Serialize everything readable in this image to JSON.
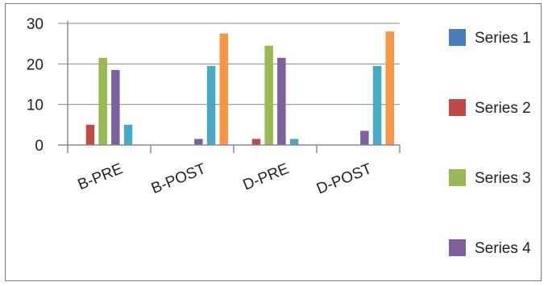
{
  "chart_data": {
    "type": "bar",
    "title": "",
    "xlabel": "",
    "ylabel": "",
    "ylim": [
      0,
      30
    ],
    "yticks": [
      0,
      10,
      20,
      30
    ],
    "categories": [
      "B-PRE",
      "B-POST",
      "D-PRE",
      "D-POST"
    ],
    "grid": true,
    "legend_position": "right",
    "series": [
      {
        "name": "Series 1",
        "color": "#4a7ebb",
        "values": [
          0,
          0,
          0,
          0
        ]
      },
      {
        "name": "Series 2",
        "color": "#be4b48",
        "values": [
          5,
          0,
          1.5,
          0
        ]
      },
      {
        "name": "Series 3",
        "color": "#98b954",
        "values": [
          21.5,
          0,
          24.5,
          0
        ]
      },
      {
        "name": "Series 4",
        "color": "#7d60a0",
        "values": [
          18.5,
          1.5,
          21.5,
          3.5
        ]
      },
      {
        "name": "",
        "color": "#46aac5",
        "values": [
          5,
          19.5,
          1.5,
          19.5
        ]
      },
      {
        "name": "",
        "color": "#f79646",
        "values": [
          0,
          27.5,
          0,
          28
        ]
      }
    ],
    "legend_items": [
      {
        "label": "Series 1",
        "color": "#4a7ebb"
      },
      {
        "label": "Series 2",
        "color": "#be4b48"
      },
      {
        "label": "Series 3",
        "color": "#98b954"
      },
      {
        "label": "Series 4",
        "color": "#7d60a0"
      }
    ]
  }
}
